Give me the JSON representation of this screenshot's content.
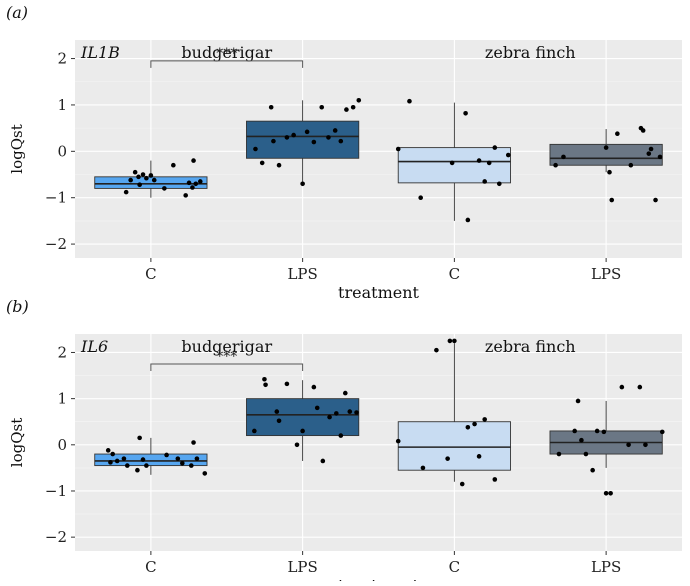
{
  "chart_data": [
    {
      "type": "box",
      "panel_label": "(a)",
      "gene": "IL1B",
      "xlabel": "treatment",
      "ylabel": "logQst",
      "ylim": [
        -2.3,
        2.4
      ],
      "yticks": [
        -2,
        -1,
        0,
        1,
        2
      ],
      "grid": true,
      "facets": [
        "budgerigar",
        "zebra finch"
      ],
      "categories": [
        "C",
        "LPS",
        "C",
        "LPS"
      ],
      "significance": {
        "label": "***",
        "from": 0,
        "to": 1,
        "y": 1.95
      },
      "groups": [
        {
          "facet": "budgerigar",
          "treatment": "C",
          "color": "#56A6F0",
          "stats": {
            "min": -1.0,
            "q1": -0.8,
            "median": -0.7,
            "q3": -0.55,
            "max": -0.2
          },
          "points": [
            [
              -0.22,
              -0.88
            ],
            [
              -0.18,
              -0.62
            ],
            [
              -0.14,
              -0.45
            ],
            [
              -0.11,
              -0.55
            ],
            [
              -0.07,
              -0.5
            ],
            [
              -0.04,
              -0.58
            ],
            [
              0.0,
              -0.52
            ],
            [
              0.03,
              -0.62
            ],
            [
              -0.1,
              -0.72
            ],
            [
              0.12,
              -0.8
            ],
            [
              0.2,
              -0.3
            ],
            [
              0.31,
              -0.95
            ],
            [
              0.34,
              -0.68
            ],
            [
              0.37,
              -0.78
            ],
            [
              0.38,
              -0.2
            ],
            [
              0.4,
              -0.7
            ],
            [
              0.44,
              -0.65
            ]
          ]
        },
        {
          "facet": "budgerigar",
          "treatment": "LPS",
          "color": "#2B5F8A",
          "stats": {
            "min": -0.7,
            "q1": -0.15,
            "median": 0.32,
            "q3": 0.65,
            "max": 1.1
          },
          "points": [
            [
              -0.42,
              0.05
            ],
            [
              -0.36,
              -0.25
            ],
            [
              -0.28,
              0.95
            ],
            [
              -0.26,
              0.22
            ],
            [
              -0.21,
              -0.3
            ],
            [
              -0.14,
              0.3
            ],
            [
              -0.08,
              0.35
            ],
            [
              0.0,
              -0.7
            ],
            [
              0.04,
              0.42
            ],
            [
              0.1,
              0.2
            ],
            [
              0.17,
              0.95
            ],
            [
              0.23,
              0.3
            ],
            [
              0.29,
              0.45
            ],
            [
              0.34,
              0.22
            ],
            [
              0.39,
              0.9
            ],
            [
              0.45,
              0.95
            ],
            [
              0.5,
              1.1
            ]
          ]
        },
        {
          "facet": "zebra finch",
          "treatment": "C",
          "color": "#C8DCF2",
          "stats": {
            "min": -1.5,
            "q1": -0.68,
            "median": -0.22,
            "q3": 0.08,
            "max": 1.05
          },
          "points": [
            [
              -0.5,
              0.05
            ],
            [
              -0.4,
              1.08
            ],
            [
              -0.3,
              -1.0
            ],
            [
              -0.02,
              -0.25
            ],
            [
              0.1,
              0.82
            ],
            [
              0.12,
              -1.48
            ],
            [
              0.22,
              -0.2
            ],
            [
              0.27,
              -0.65
            ],
            [
              0.31,
              -0.25
            ],
            [
              0.36,
              0.08
            ],
            [
              0.4,
              -0.7
            ],
            [
              0.48,
              -0.08
            ]
          ]
        },
        {
          "facet": "zebra finch",
          "treatment": "LPS",
          "color": "#6B7785",
          "stats": {
            "min": -0.45,
            "q1": -0.3,
            "median": -0.15,
            "q3": 0.15,
            "max": 0.48
          },
          "points": [
            [
              -0.45,
              -0.3
            ],
            [
              -0.38,
              -0.12
            ],
            [
              0.0,
              0.08
            ],
            [
              0.03,
              -0.45
            ],
            [
              0.05,
              -1.05
            ],
            [
              0.1,
              0.38
            ],
            [
              0.22,
              -0.3
            ],
            [
              0.31,
              0.5
            ],
            [
              0.33,
              0.45
            ],
            [
              0.38,
              -0.05
            ],
            [
              0.4,
              0.05
            ],
            [
              0.44,
              -1.05
            ],
            [
              0.48,
              -0.12
            ]
          ]
        }
      ]
    },
    {
      "type": "box",
      "panel_label": "(b)",
      "gene": "IL6",
      "xlabel": "treatment",
      "ylabel": "logQst",
      "ylim": [
        -2.3,
        2.4
      ],
      "yticks": [
        -2,
        -1,
        0,
        1,
        2
      ],
      "grid": true,
      "facets": [
        "budgerigar",
        "zebra finch"
      ],
      "categories": [
        "C",
        "LPS",
        "C",
        "LPS"
      ],
      "significance": {
        "label": "***",
        "from": 0,
        "to": 1,
        "y": 1.75
      },
      "groups": [
        {
          "facet": "budgerigar",
          "treatment": "C",
          "color": "#56A6F0",
          "stats": {
            "min": -0.65,
            "q1": -0.45,
            "median": -0.35,
            "q3": -0.2,
            "max": 0.15
          },
          "points": [
            [
              -0.38,
              -0.12
            ],
            [
              -0.36,
              -0.38
            ],
            [
              -0.34,
              -0.2
            ],
            [
              -0.3,
              -0.35
            ],
            [
              -0.24,
              -0.3
            ],
            [
              -0.21,
              -0.45
            ],
            [
              -0.12,
              -0.55
            ],
            [
              -0.1,
              0.15
            ],
            [
              -0.07,
              -0.32
            ],
            [
              -0.04,
              -0.45
            ],
            [
              0.14,
              -0.22
            ],
            [
              0.24,
              -0.3
            ],
            [
              0.28,
              -0.4
            ],
            [
              0.36,
              -0.45
            ],
            [
              0.38,
              0.05
            ],
            [
              0.41,
              -0.3
            ],
            [
              0.48,
              -0.62
            ]
          ]
        },
        {
          "facet": "budgerigar",
          "treatment": "LPS",
          "color": "#2B5F8A",
          "stats": {
            "min": -0.35,
            "q1": 0.2,
            "median": 0.65,
            "q3": 1.0,
            "max": 1.4
          },
          "points": [
            [
              -0.43,
              0.3
            ],
            [
              -0.34,
              1.42
            ],
            [
              -0.33,
              1.3
            ],
            [
              -0.23,
              0.72
            ],
            [
              -0.21,
              0.52
            ],
            [
              -0.14,
              1.32
            ],
            [
              -0.05,
              0.0
            ],
            [
              0.0,
              0.3
            ],
            [
              0.1,
              1.25
            ],
            [
              0.13,
              0.8
            ],
            [
              0.18,
              -0.35
            ],
            [
              0.24,
              0.6
            ],
            [
              0.3,
              0.68
            ],
            [
              0.34,
              0.2
            ],
            [
              0.38,
              1.12
            ],
            [
              0.42,
              0.72
            ],
            [
              0.48,
              0.7
            ]
          ]
        },
        {
          "facet": "zebra finch",
          "treatment": "C",
          "color": "#C8DCF2",
          "stats": {
            "min": -0.8,
            "q1": -0.55,
            "median": -0.05,
            "q3": 0.5,
            "max": 2.2
          },
          "points": [
            [
              -0.5,
              0.08
            ],
            [
              -0.28,
              -0.5
            ],
            [
              -0.16,
              2.05
            ],
            [
              -0.06,
              -0.3
            ],
            [
              -0.04,
              2.25
            ],
            [
              0.0,
              2.25
            ],
            [
              0.07,
              -0.85
            ],
            [
              0.12,
              0.38
            ],
            [
              0.18,
              0.45
            ],
            [
              0.22,
              -0.25
            ],
            [
              0.27,
              0.55
            ],
            [
              0.36,
              -0.75
            ]
          ]
        },
        {
          "facet": "zebra finch",
          "treatment": "LPS",
          "color": "#6B7785",
          "stats": {
            "min": -0.5,
            "q1": -0.2,
            "median": 0.05,
            "q3": 0.3,
            "max": 0.95
          },
          "points": [
            [
              -0.42,
              -0.2
            ],
            [
              -0.28,
              0.3
            ],
            [
              -0.25,
              0.95
            ],
            [
              -0.22,
              0.1
            ],
            [
              -0.18,
              -0.2
            ],
            [
              -0.12,
              -0.55
            ],
            [
              -0.08,
              0.3
            ],
            [
              -0.02,
              0.28
            ],
            [
              0.0,
              -1.05
            ],
            [
              0.04,
              -1.05
            ],
            [
              0.14,
              1.25
            ],
            [
              0.2,
              0.0
            ],
            [
              0.3,
              1.25
            ],
            [
              0.35,
              0.0
            ],
            [
              0.5,
              0.28
            ]
          ]
        }
      ]
    }
  ]
}
